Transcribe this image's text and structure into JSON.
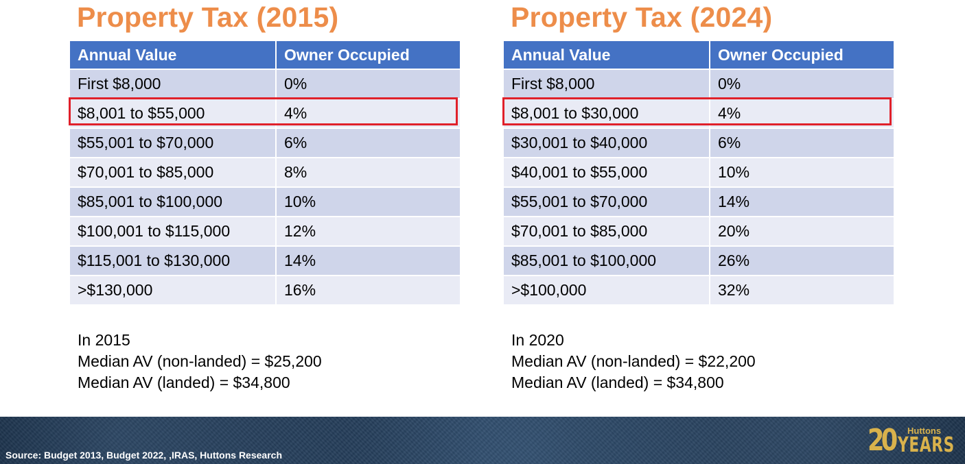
{
  "panels": [
    {
      "title": "Property Tax (2015)",
      "headers": [
        "Annual Value",
        "Owner Occupied"
      ],
      "rows": [
        {
          "band": "First $8,000",
          "rate": "0%"
        },
        {
          "band": "$8,001 to $55,000",
          "rate": "4%"
        },
        {
          "band": "$55,001 to $70,000",
          "rate": "6%"
        },
        {
          "band": "$70,001 to $85,000",
          "rate": "8%"
        },
        {
          "band": "$85,001 to $100,000",
          "rate": "10%"
        },
        {
          "band": "$100,001 to $115,000",
          "rate": "12%"
        },
        {
          "band": "$115,001 to $130,000",
          "rate": "14%"
        },
        {
          "band": ">$130,000",
          "rate": "16%"
        }
      ],
      "highlighted_row": 2,
      "notes": [
        "In 2015",
        "Median AV (non-landed) = $25,200",
        "Median AV (landed) = $34,800"
      ]
    },
    {
      "title": "Property Tax (2024)",
      "headers": [
        "Annual Value",
        "Owner Occupied"
      ],
      "rows": [
        {
          "band": "First $8,000",
          "rate": "0%"
        },
        {
          "band": "$8,001 to $30,000",
          "rate": "4%"
        },
        {
          "band": "$30,001 to $40,000",
          "rate": "6%"
        },
        {
          "band": "$40,001 to $55,000",
          "rate": "10%"
        },
        {
          "band": "$55,001 to $70,000",
          "rate": "14%"
        },
        {
          "band": "$70,001 to $85,000",
          "rate": "20%"
        },
        {
          "band": "$85,001 to $100,000",
          "rate": "26%"
        },
        {
          "band": ">$100,000",
          "rate": "32%"
        }
      ],
      "highlighted_row": 2,
      "notes": [
        "In 2020",
        "Median AV (non-landed) = $22,200",
        "Median AV (landed) = $34,800"
      ]
    }
  ],
  "footer": {
    "source": "Source: Budget 2013, Budget 2022, ,IRAS, Huttons Research",
    "logo": {
      "number": "20",
      "brand": "Huttons",
      "years": "YEARS"
    }
  },
  "colors": {
    "title": "#ED8D4A",
    "header_bg": "#4472C4",
    "row_odd": "#CFD5EA",
    "row_even": "#E9EBF5",
    "highlight_border": "#E0202A",
    "logo_gold": "#D9B24C",
    "footer_bg": "#1a2f4a"
  }
}
